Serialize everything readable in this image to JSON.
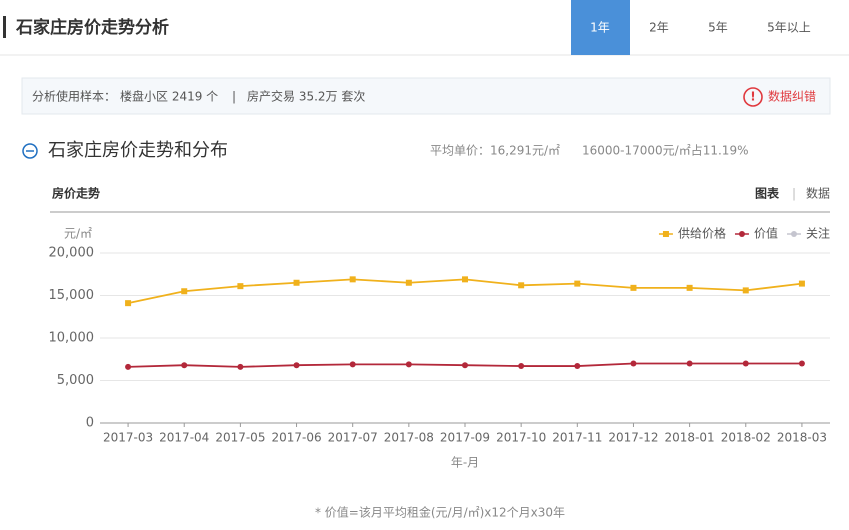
{
  "header": {
    "title": "石家庄房价走势分析",
    "tabs": [
      "1年",
      "2年",
      "5年",
      "5年以上"
    ],
    "active_tab": 0
  },
  "info": {
    "label": "分析使用样本：",
    "communities": "楼盘小区 2419 个",
    "separator": "|",
    "transactions": "房产交易 35.2万 套次",
    "report": "数据纠错"
  },
  "section": {
    "title": "石家庄房价走势和分布",
    "avg_price": "平均单价：16,291元/㎡",
    "share": "16000-17000元/㎡占11.19%"
  },
  "panel": {
    "title": "房价走势",
    "view_chart": "图表",
    "view_separator": "|",
    "view_data": "数据"
  },
  "chart_data": {
    "type": "line",
    "y_unit": "元/㎡",
    "x_label": "年-月",
    "categories": [
      "2017-03",
      "2017-04",
      "2017-05",
      "2017-06",
      "2017-07",
      "2017-08",
      "2017-09",
      "2017-10",
      "2017-11",
      "2017-12",
      "2018-01",
      "2018-02",
      "2018-03"
    ],
    "series": [
      {
        "name": "供给价格",
        "color": "#f0b11c",
        "marker": "square",
        "values": [
          14100,
          15500,
          16100,
          16500,
          16900,
          16500,
          16900,
          16200,
          16400,
          15900,
          15900,
          15600,
          16400
        ]
      },
      {
        "name": "价值",
        "color": "#b3283a",
        "marker": "circle",
        "values": [
          6600,
          6800,
          6600,
          6800,
          6900,
          6900,
          6800,
          6700,
          6700,
          7000,
          7000,
          7000,
          7000
        ]
      },
      {
        "name": "关注",
        "color": "#c5c5cf",
        "marker": "circle",
        "values": [
          null,
          null,
          null,
          null,
          null,
          null,
          null,
          null,
          null,
          null,
          null,
          null,
          null
        ]
      }
    ],
    "ylim": [
      0,
      20000
    ],
    "yticks": [
      0,
      {
        "value": 5000,
        "label": "5,000"
      },
      {
        "value": 10000,
        "label": "10,000"
      },
      {
        "value": 15000,
        "label": "15,000"
      },
      {
        "value": 20000,
        "label": "20,000"
      }
    ],
    "grid": true,
    "legend": "top-right",
    "note": "* 价值=该月平均租金(元/月/㎡)x12个月x30年"
  }
}
